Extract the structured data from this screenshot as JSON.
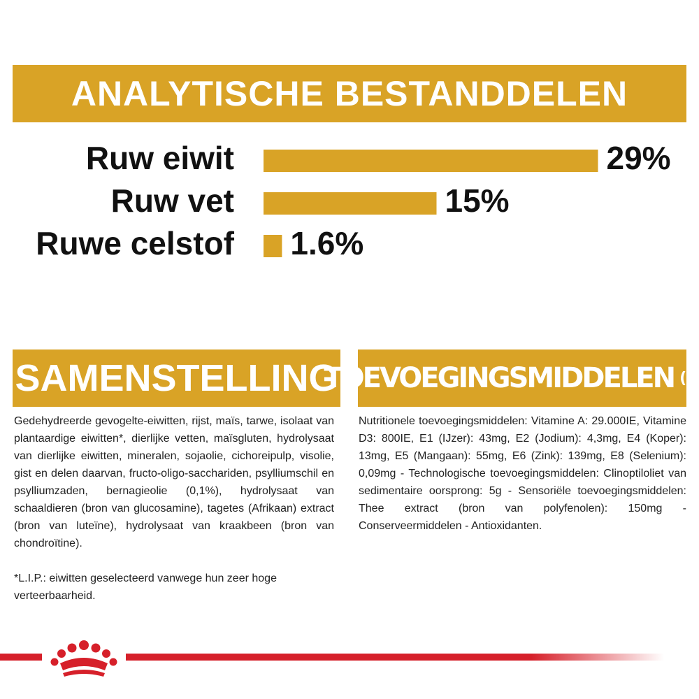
{
  "chart_data": {
    "type": "bar",
    "title": "ANALYTISCHE BESTANDDELEN",
    "categories": [
      "Ruw eiwit",
      "Ruw vet",
      "Ruwe celstof"
    ],
    "values": [
      29,
      15,
      1.6
    ],
    "value_labels": [
      "29%",
      "15%",
      "1.6%"
    ],
    "color": "#d9a326",
    "orientation": "horizontal"
  },
  "composition": {
    "title": "SAMENSTELLING",
    "text": "Gedehydreerde gevogelte-eiwitten, rijst, maïs, tarwe, isolaat van plantaardige eiwitten*, dierlijke vetten, maïsgluten, hydrolysaat van dierlijke eiwitten, mineralen, sojaolie, cichoreipulp, visolie, gist en delen daarvan, fructo-oligo-sacchariden, psylliumschil en psylliumzaden, bernagieolie (0,1%), hydrolysaat van schaaldieren (bron van glucosamine), tagetes (Afrikaan) extract (bron van luteïne), hydrolysaat van kraakbeen (bron van chondroïtine).",
    "footnote": "*L.I.P.: eiwitten geselecteerd vanwege hun zeer hoge verteerbaarheid."
  },
  "additives": {
    "title": "TOEVOEGINGSMIDDELEN",
    "unit": "(/kg)",
    "text": "Nutritionele toevoegingsmiddelen: Vitamine A: 29.000IE, Vitamine D3: 800IE, E1 (IJzer): 43mg, E2 (Jodium): 4,3mg, E4 (Koper): 13mg, E5 (Mangaan): 55mg, E6 (Zink): 139mg, E8 (Selenium): 0,09mg - Technologische toevoegingsmiddelen: Clinoptiloliet van sedimentaire oorsprong: 5g - Sensoriële toevoegingsmiddelen: Thee extract (bron van polyfenolen): 150mg - Conserveermiddelen - Antioxidanten."
  }
}
